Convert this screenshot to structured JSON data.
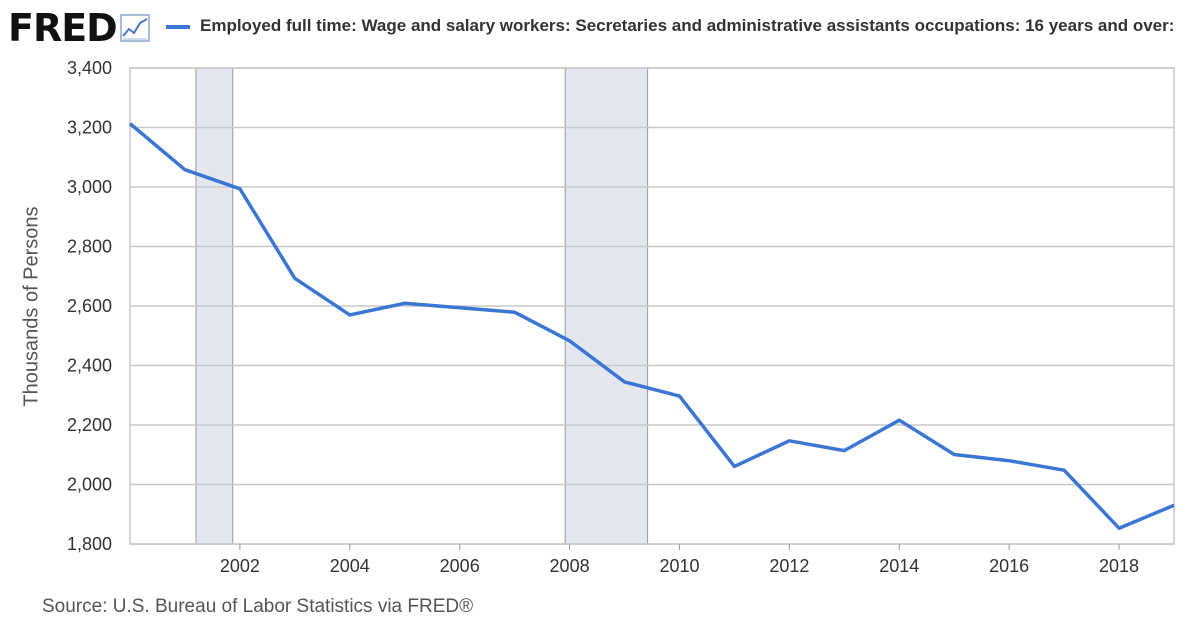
{
  "brand": {
    "logo_text": "FRED",
    "logo_icon": "chart-line-icon"
  },
  "legend": {
    "label": "Employed full time: Wage and salary workers: Secretaries and administrative assistants occupations: 16 years and over:",
    "color": "#3b76d4"
  },
  "source": "Source: U.S. Bureau of Labor Statistics via FRED®",
  "chart_data": {
    "type": "line",
    "ylabel": "Thousands of Persons",
    "xlabel": "",
    "xlim": [
      2000,
      2019
    ],
    "ylim": [
      1800,
      3400
    ],
    "x_ticks": [
      "2002",
      "2004",
      "2006",
      "2008",
      "2010",
      "2012",
      "2014",
      "2016",
      "2018"
    ],
    "y_ticks": [
      "1,800",
      "2,000",
      "2,200",
      "2,400",
      "2,600",
      "2,800",
      "3,000",
      "3,200",
      "3,400"
    ],
    "grid": true,
    "recessions": [
      [
        2001.2,
        2001.87
      ],
      [
        2007.92,
        2009.42
      ]
    ],
    "series": [
      {
        "name": "Employed full time: Wage and salary workers: Secretaries and administrative assistants occupations: 16 years and over:",
        "color": "#3b76d4",
        "x": [
          2000,
          2001,
          2002,
          2003,
          2004,
          2005,
          2006,
          2007,
          2008,
          2009,
          2010,
          2011,
          2012,
          2013,
          2014,
          2015,
          2016,
          2017,
          2018,
          2019
        ],
        "values": [
          3213,
          3058,
          2994,
          2693,
          2570,
          2609,
          2594,
          2579,
          2483,
          2345,
          2297,
          2061,
          2147,
          2114,
          2216,
          2101,
          2080,
          2048,
          1853,
          1930
        ]
      }
    ]
  }
}
